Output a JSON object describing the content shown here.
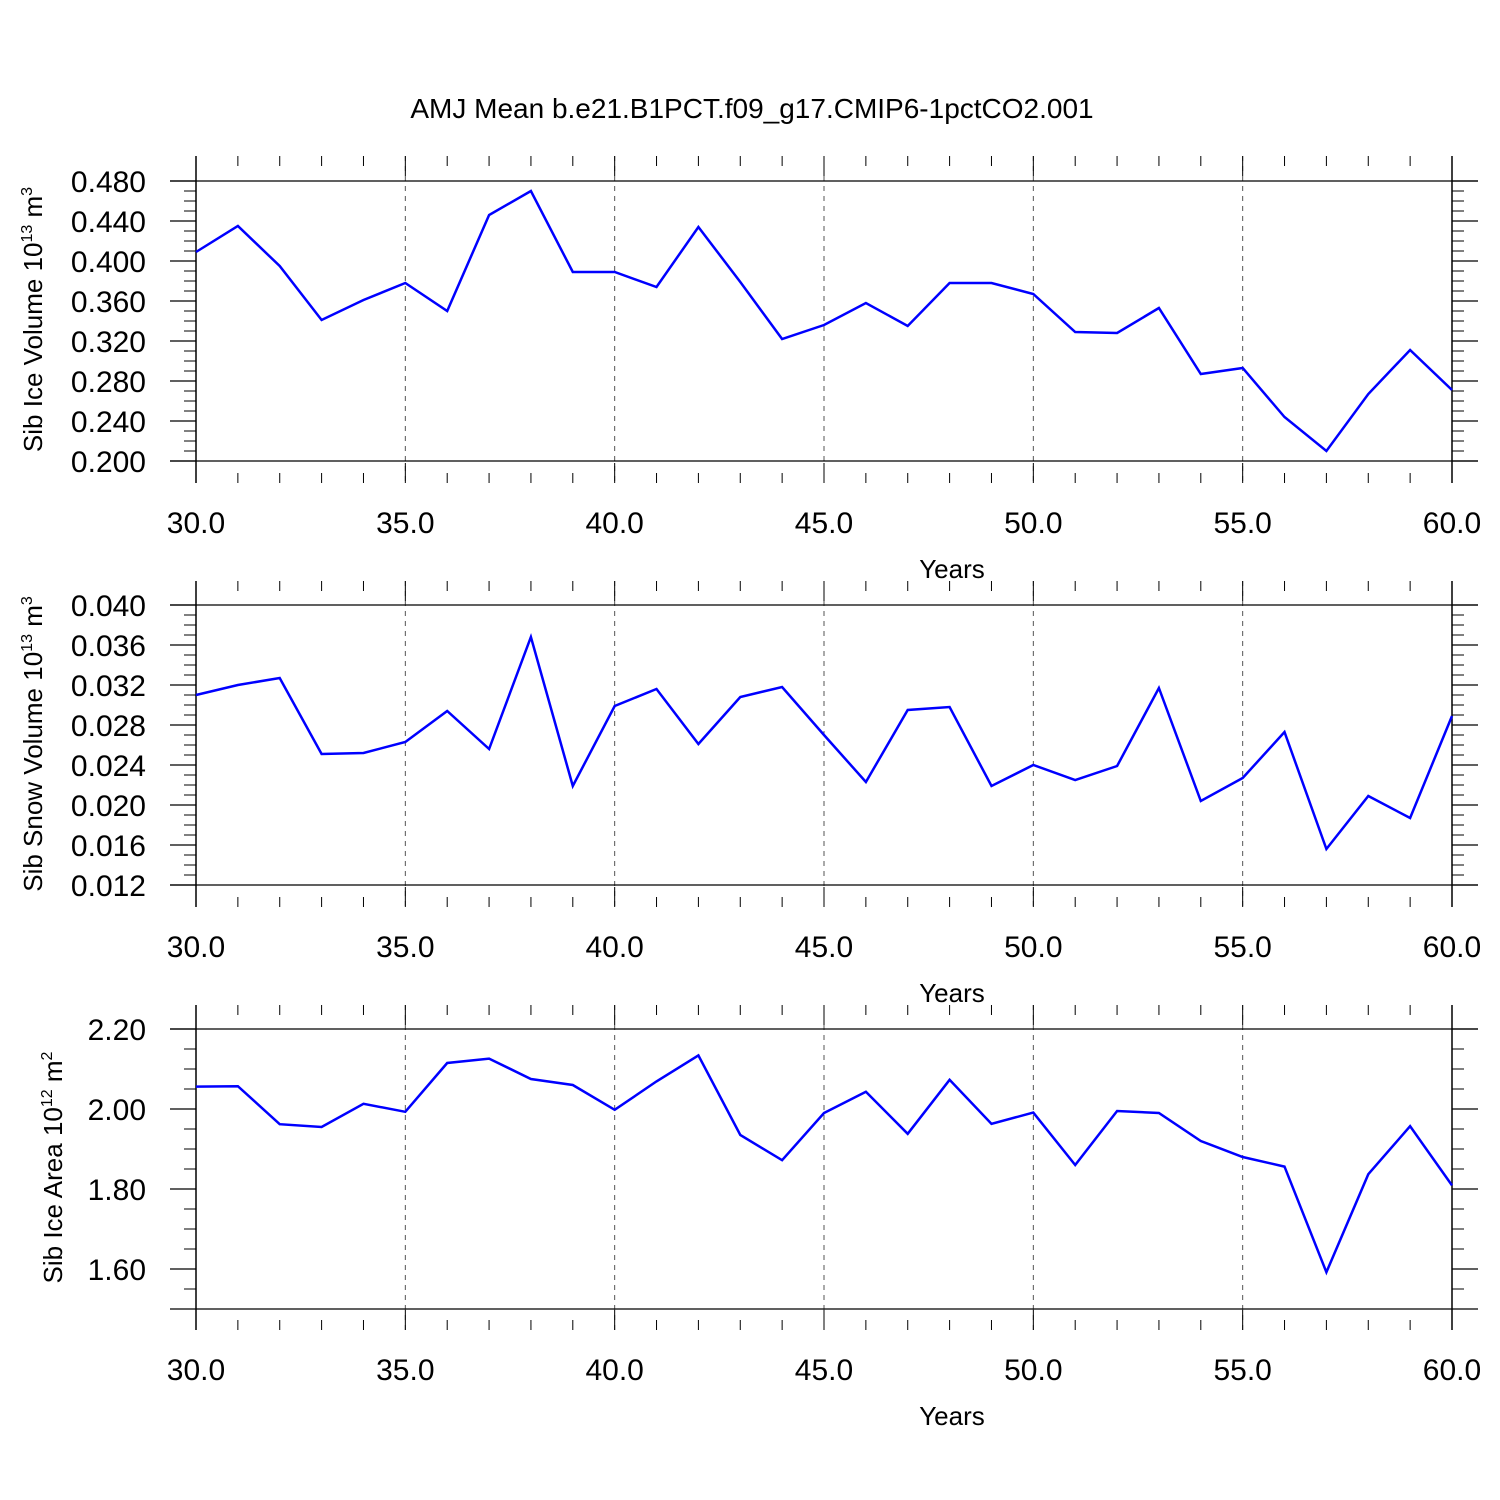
{
  "title": "AMJ Mean b.e21.B1PCT.f09_g17.CMIP6-1pctCO2.001",
  "colors": {
    "line": "#0000ff",
    "axis": "#000000",
    "grid": "#555555"
  },
  "chart_data": [
    {
      "type": "line",
      "xlabel": "Years",
      "ylabel": {
        "prefix": "Sib Ice Volume 10",
        "exp": "13",
        "unit": " m",
        "unit_exp": "3"
      },
      "xlim": [
        30,
        60
      ],
      "ylim": [
        0.2,
        0.48
      ],
      "x_ticks": [
        "30.0",
        "35.0",
        "40.0",
        "45.0",
        "50.0",
        "55.0",
        "60.0"
      ],
      "y_ticks": [
        "0.200",
        "0.240",
        "0.280",
        "0.320",
        "0.360",
        "0.400",
        "0.440",
        "0.480"
      ],
      "y_tick_values": [
        0.2,
        0.24,
        0.28,
        0.32,
        0.36,
        0.4,
        0.44,
        0.48
      ],
      "grid": "dashed vertical at major x ticks",
      "x": [
        30,
        31,
        32,
        33,
        34,
        35,
        36,
        37,
        38,
        39,
        40,
        41,
        42,
        43,
        44,
        45,
        46,
        47,
        48,
        49,
        50,
        51,
        52,
        53,
        54,
        55,
        56,
        57,
        58,
        59,
        60
      ],
      "values": [
        0.409,
        0.435,
        0.395,
        0.341,
        0.361,
        0.378,
        0.35,
        0.446,
        0.47,
        0.389,
        0.389,
        0.374,
        0.434,
        0.379,
        0.322,
        0.336,
        0.358,
        0.335,
        0.378,
        0.378,
        0.367,
        0.329,
        0.328,
        0.353,
        0.287,
        0.293,
        0.244,
        0.21,
        0.267,
        0.311,
        0.271
      ]
    },
    {
      "type": "line",
      "xlabel": "Years",
      "ylabel": {
        "prefix": "Sib Snow Volume 10",
        "exp": "13",
        "unit": " m",
        "unit_exp": "3"
      },
      "xlim": [
        30,
        60
      ],
      "ylim": [
        0.012,
        0.04
      ],
      "x_ticks": [
        "30.0",
        "35.0",
        "40.0",
        "45.0",
        "50.0",
        "55.0",
        "60.0"
      ],
      "y_ticks": [
        "0.012",
        "0.016",
        "0.020",
        "0.024",
        "0.028",
        "0.032",
        "0.036",
        "0.040"
      ],
      "y_tick_values": [
        0.012,
        0.016,
        0.02,
        0.024,
        0.028,
        0.032,
        0.036,
        0.04
      ],
      "grid": "dashed vertical at major x ticks",
      "x": [
        30,
        31,
        32,
        33,
        34,
        35,
        36,
        37,
        38,
        39,
        40,
        41,
        42,
        43,
        44,
        45,
        46,
        47,
        48,
        49,
        50,
        51,
        52,
        53,
        54,
        55,
        56,
        57,
        58,
        59,
        60
      ],
      "values": [
        0.031,
        0.032,
        0.0327,
        0.0251,
        0.0252,
        0.0263,
        0.0294,
        0.0256,
        0.0368,
        0.0219,
        0.0299,
        0.0316,
        0.0261,
        0.0308,
        0.0318,
        0.027,
        0.0223,
        0.0295,
        0.0298,
        0.0219,
        0.024,
        0.0225,
        0.0239,
        0.0317,
        0.0204,
        0.0227,
        0.0273,
        0.0156,
        0.0209,
        0.0187,
        0.0289
      ]
    },
    {
      "type": "line",
      "xlabel": "Years",
      "ylabel": {
        "prefix": "Sib Ice Area 10",
        "exp": "12",
        "unit": " m",
        "unit_exp": "2"
      },
      "xlim": [
        30,
        60
      ],
      "ylim": [
        1.5,
        2.2
      ],
      "x_ticks": [
        "30.0",
        "35.0",
        "40.0",
        "45.0",
        "50.0",
        "55.0",
        "60.0"
      ],
      "y_ticks": [
        "1.60",
        "1.80",
        "2.00",
        "2.20"
      ],
      "y_tick_values": [
        1.6,
        1.8,
        2.0,
        2.2
      ],
      "grid": "dashed vertical at major x ticks",
      "x": [
        30,
        31,
        32,
        33,
        34,
        35,
        36,
        37,
        38,
        39,
        40,
        41,
        42,
        43,
        44,
        45,
        46,
        47,
        48,
        49,
        50,
        51,
        52,
        53,
        54,
        55,
        56,
        57,
        58,
        59,
        60
      ],
      "values": [
        2.056,
        2.057,
        1.962,
        1.955,
        2.013,
        1.993,
        2.115,
        2.126,
        2.075,
        2.06,
        1.998,
        2.069,
        2.134,
        1.935,
        1.872,
        1.99,
        2.043,
        1.938,
        2.073,
        1.963,
        1.991,
        1.86,
        1.995,
        1.99,
        1.92,
        1.88,
        1.856,
        1.592,
        1.837,
        1.957,
        1.809
      ]
    }
  ]
}
